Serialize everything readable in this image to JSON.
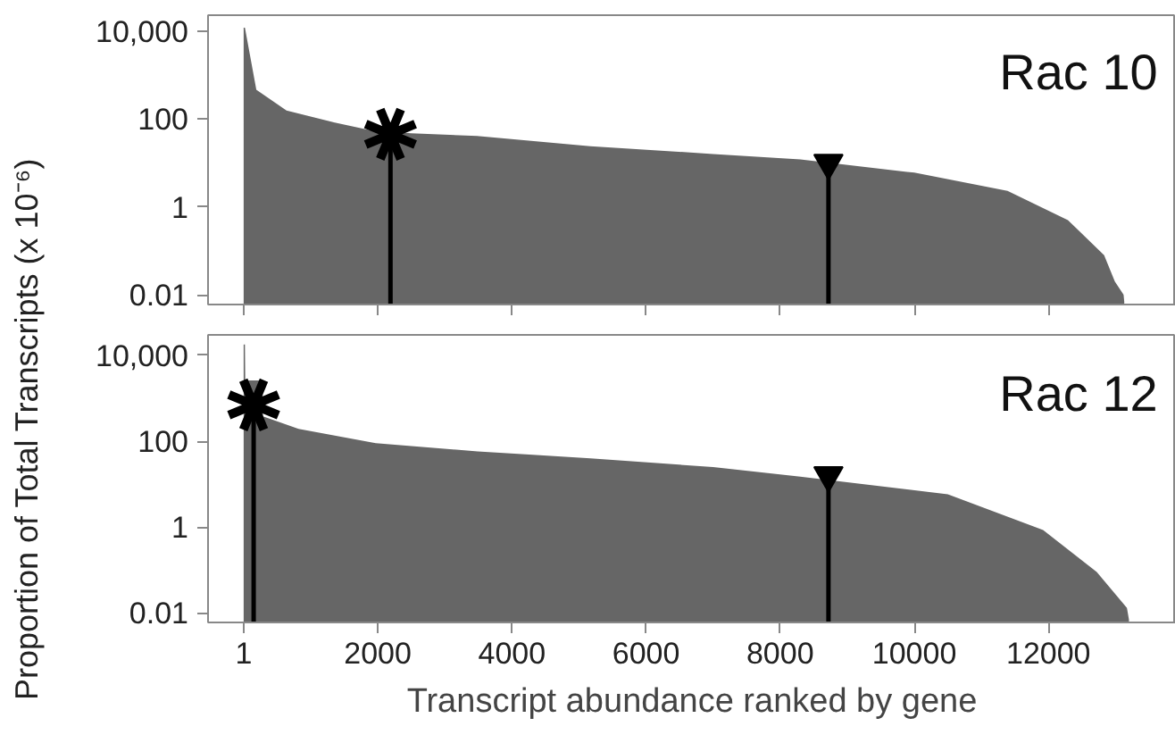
{
  "chart_data": [
    {
      "type": "area",
      "title": "Rac 10",
      "ylabel": "Proportion of Total Transcripts (x 10⁻⁶)",
      "log": true,
      "grid": false,
      "tick_labels": "y",
      "xlim": [
        -530,
        13900
      ],
      "ylim": [
        0.006,
        23000
      ],
      "yticks": [
        {
          "value": 0.01,
          "label": "0.01"
        },
        {
          "value": 1,
          "label": "1"
        },
        {
          "value": 100,
          "label": "100"
        },
        {
          "value": 10000,
          "label": "10,000"
        }
      ],
      "xticks": [
        {
          "value": 1,
          "label": null
        },
        {
          "value": 2000,
          "label": null
        },
        {
          "value": 4000,
          "label": null
        },
        {
          "value": 6000,
          "label": null
        },
        {
          "value": 8000,
          "label": null
        },
        {
          "value": 10000,
          "label": null
        },
        {
          "value": 12000,
          "label": null
        }
      ],
      "series": [
        {
          "color": "#666666",
          "x": [
            1,
            20,
            190,
            640,
            1360,
            1900,
            2500,
            3480,
            5170,
            7000,
            8300,
            10000,
            11390,
            12290,
            12830,
            12990,
            13120,
            13130
          ],
          "values": [
            12000,
            12000,
            460,
            155,
            83,
            55,
            47,
            41,
            24,
            16,
            12,
            6,
            2.3,
            0.5,
            0.08,
            0.02,
            0.01,
            0.007
          ]
        },
        {
          "type": "lollipop",
          "marker": "cross",
          "color": "#000000",
          "x": [
            2190
          ],
          "values": [
            45
          ]
        },
        {
          "type": "lollipop",
          "marker": "triangle",
          "color": "#000000",
          "x": [
            8720
          ],
          "values": [
            10
          ]
        }
      ]
    },
    {
      "type": "area",
      "title": "Rac 12",
      "xlabel": "Transcript abundance ranked by gene",
      "log": true,
      "grid": false,
      "xlim": [
        -530,
        13900
      ],
      "ylim": [
        0.006,
        30000
      ],
      "yticks": [
        {
          "value": 0.01,
          "label": "0.01"
        },
        {
          "value": 1,
          "label": "1"
        },
        {
          "value": 100,
          "label": "100"
        },
        {
          "value": 10000,
          "label": "10,000"
        }
      ],
      "xticks": [
        1,
        2000,
        4000,
        6000,
        8000,
        10000,
        12000
      ],
      "series": [
        {
          "color": "#666666",
          "x": [
            1,
            20,
            25,
            280,
            290,
            820,
            1970,
            3490,
            5170,
            7000,
            8300,
            10500,
            11920,
            12720,
            13170,
            13200
          ],
          "values": [
            18000,
            18000,
            2600,
            2600,
            380,
            195,
            90,
            58,
            40,
            25,
            15,
            5.8,
            0.85,
            0.09,
            0.013,
            0.007
          ]
        },
        {
          "type": "lollipop",
          "marker": "cross",
          "color": "#000000",
          "x": [
            150
          ],
          "values": [
            700
          ]
        },
        {
          "type": "lollipop",
          "marker": "triangle",
          "color": "#000000",
          "x": [
            8720
          ],
          "values": [
            16
          ]
        }
      ]
    }
  ]
}
